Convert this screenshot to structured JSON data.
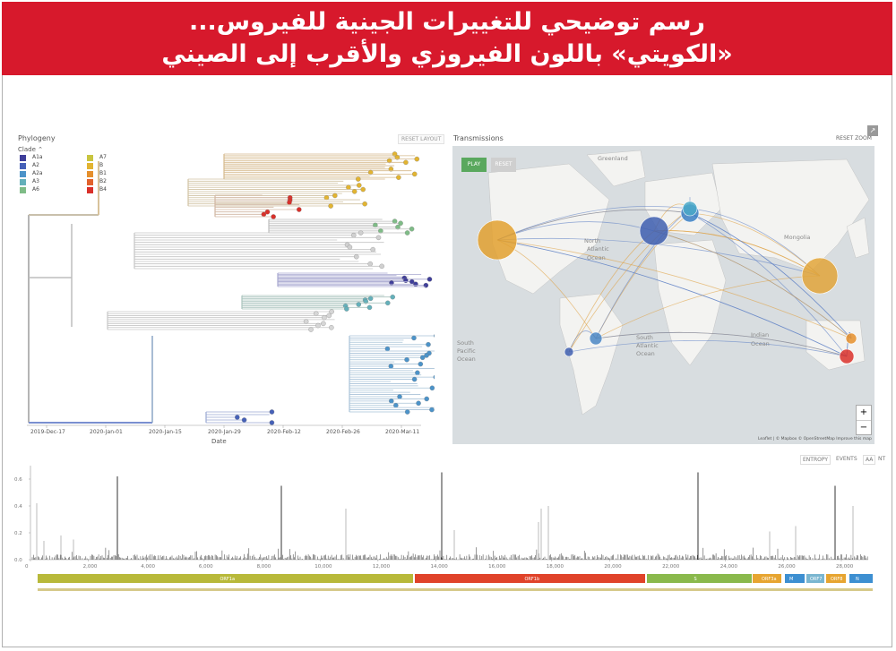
{
  "banner": {
    "line1": "رسم توضيحي للتغييرات الجينية للفيروس...",
    "line2": "«الكويتي» باللون الفيروزي والأقرب إلى الصيني",
    "bg_color": "#d7192c"
  },
  "phylogeny": {
    "title": "Phylogeny",
    "reset_label": "RESET LAYOUT",
    "legend_title": "Clade",
    "legend": [
      {
        "label": "A1a",
        "color": "#3f3e9a"
      },
      {
        "label": "A2",
        "color": "#4661b8"
      },
      {
        "label": "A2a",
        "color": "#4c93c9"
      },
      {
        "label": "A3",
        "color": "#64b0ba"
      },
      {
        "label": "A6",
        "color": "#7fbc87"
      },
      {
        "label": "A7",
        "color": "#c8c540"
      },
      {
        "label": "B",
        "color": "#e2b431"
      },
      {
        "label": "B1",
        "color": "#e58f2c"
      },
      {
        "label": "B2",
        "color": "#e2612b"
      },
      {
        "label": "B4",
        "color": "#d9302a"
      }
    ],
    "xticks": [
      "2019-Dec-17",
      "2020-Jan-01",
      "2020-Jan-15",
      "2020-Jan-29",
      "2020-Feb-12",
      "2020-Feb-26",
      "2020-Mar-11"
    ],
    "xlabel": "Date"
  },
  "transmissions": {
    "title": "Transmissions",
    "reset_label": "RESET ZOOM",
    "play_label": "PLAY",
    "reset_button": "RESET",
    "zoom_in": "+",
    "zoom_out": "−",
    "map_labels": [
      {
        "text": "Greenland"
      },
      {
        "text": "North"
      },
      {
        "text": "Atlantic"
      },
      {
        "text": "Ocean"
      },
      {
        "text": "South"
      },
      {
        "text": "Atlantic"
      },
      {
        "text": "Ocean"
      },
      {
        "text": "South"
      },
      {
        "text": "Pacific"
      },
      {
        "text": "Ocean"
      },
      {
        "text": "Indian"
      },
      {
        "text": "Ocean"
      },
      {
        "text": "Mongolia"
      }
    ],
    "attribution": "Leaflet | © Mapbox © OpenStreetMap Improve this map"
  },
  "entropy": {
    "tabs": [
      "ENTROPY",
      "EVENTS",
      "AA",
      "NT"
    ],
    "yticks": [
      "0.6",
      "0.4",
      "0.2",
      "0.0"
    ],
    "xticks": [
      "0",
      "2,000",
      "4,000",
      "6,000",
      "8,000",
      "10,000",
      "12,000",
      "14,000",
      "16,000",
      "18,000",
      "20,000",
      "22,000",
      "24,000",
      "26,000",
      "28,000"
    ],
    "genes": [
      {
        "label": "ORF1a",
        "color": "#b8b93a"
      },
      {
        "label": "ORF1b",
        "color": "#e0432a"
      },
      {
        "label": "S",
        "color": "#8ab94c"
      },
      {
        "label": "ORF3a",
        "color": "#e7a531"
      },
      {
        "label": "M",
        "color": "#3d8fd1"
      },
      {
        "label": "ORF7",
        "color": "#7ab6d0"
      },
      {
        "label": "ORF8",
        "color": "#e7a531"
      },
      {
        "label": "N",
        "color": "#3d8fd1"
      }
    ]
  }
}
